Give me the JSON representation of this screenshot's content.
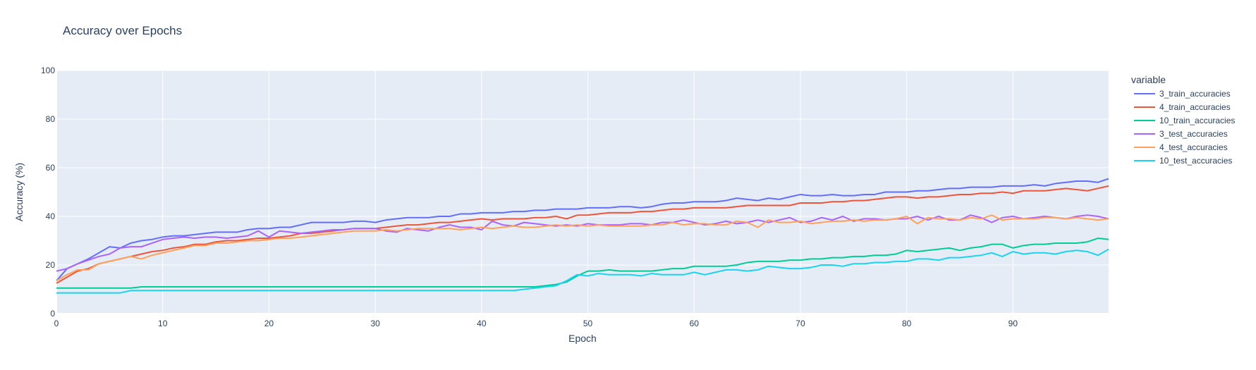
{
  "chart_data": {
    "type": "line",
    "title": "Accuracy over Epochs",
    "xlabel": "Epoch",
    "ylabel": "Accuracy (%)",
    "xlim": [
      0,
      99
    ],
    "ylim": [
      0,
      100
    ],
    "x_ticks": [
      0,
      10,
      20,
      30,
      40,
      50,
      60,
      70,
      80,
      90
    ],
    "y_ticks": [
      0,
      20,
      40,
      60,
      80,
      100
    ],
    "grid": true,
    "legend_title": "variable",
    "legend_position": "right",
    "x": [
      0,
      1,
      2,
      3,
      4,
      5,
      6,
      7,
      8,
      9,
      10,
      11,
      12,
      13,
      14,
      15,
      16,
      17,
      18,
      19,
      20,
      21,
      22,
      23,
      24,
      25,
      26,
      27,
      28,
      29,
      30,
      31,
      32,
      33,
      34,
      35,
      36,
      37,
      38,
      39,
      40,
      41,
      42,
      43,
      44,
      45,
      46,
      47,
      48,
      49,
      50,
      51,
      52,
      53,
      54,
      55,
      56,
      57,
      58,
      59,
      60,
      61,
      62,
      63,
      64,
      65,
      66,
      67,
      68,
      69,
      70,
      71,
      72,
      73,
      74,
      75,
      76,
      77,
      78,
      79,
      80,
      81,
      82,
      83,
      84,
      85,
      86,
      87,
      88,
      89,
      90,
      91,
      92,
      93,
      94,
      95,
      96,
      97,
      98,
      99
    ],
    "series": [
      {
        "name": "3_train_accuracies",
        "color": "#636efa",
        "values": [
          13.5,
          18.5,
          20.5,
          22.5,
          25.0,
          27.5,
          27.0,
          29.0,
          30.0,
          30.5,
          31.5,
          32.0,
          32.0,
          32.5,
          33.0,
          33.5,
          33.5,
          33.5,
          34.5,
          35.0,
          35.0,
          35.5,
          35.5,
          36.5,
          37.5,
          37.5,
          37.5,
          37.5,
          38.0,
          38.0,
          37.5,
          38.5,
          39.0,
          39.5,
          39.5,
          39.5,
          40.0,
          40.0,
          41.0,
          41.0,
          41.5,
          41.5,
          41.5,
          42.0,
          42.0,
          42.5,
          42.5,
          43.0,
          43.0,
          43.0,
          43.5,
          43.5,
          43.5,
          44.0,
          44.0,
          43.5,
          44.0,
          45.0,
          45.5,
          45.5,
          46.0,
          46.0,
          46.0,
          46.5,
          47.5,
          47.0,
          46.5,
          47.5,
          47.0,
          48.0,
          49.0,
          48.5,
          48.5,
          49.0,
          48.5,
          48.5,
          49.0,
          49.0,
          50.0,
          50.0,
          50.0,
          50.5,
          50.5,
          51.0,
          51.5,
          51.5,
          52.0,
          52.0,
          52.0,
          52.5,
          52.5,
          52.5,
          53.0,
          52.5,
          53.5,
          54.0,
          54.5,
          54.5,
          54.0,
          55.5
        ]
      },
      {
        "name": "4_train_accuracies",
        "color": "#ef553b",
        "values": [
          12.5,
          15.0,
          17.5,
          18.5,
          20.5,
          21.5,
          22.5,
          23.5,
          24.5,
          25.5,
          26.0,
          27.0,
          27.5,
          28.5,
          28.5,
          29.5,
          30.0,
          30.0,
          30.5,
          31.0,
          31.0,
          31.5,
          32.0,
          33.0,
          33.0,
          33.5,
          34.0,
          34.5,
          35.0,
          35.0,
          35.0,
          35.5,
          36.0,
          36.5,
          36.5,
          37.0,
          37.5,
          37.5,
          38.0,
          38.5,
          39.0,
          38.5,
          39.0,
          39.0,
          39.0,
          39.5,
          39.5,
          40.0,
          39.0,
          40.5,
          40.5,
          41.0,
          41.5,
          41.5,
          41.5,
          42.0,
          42.0,
          42.5,
          43.0,
          43.0,
          43.5,
          43.5,
          43.5,
          43.5,
          44.0,
          44.5,
          44.5,
          44.5,
          44.5,
          44.5,
          45.5,
          45.5,
          45.5,
          46.0,
          46.0,
          46.5,
          46.5,
          47.0,
          47.5,
          48.0,
          48.0,
          47.5,
          48.0,
          48.0,
          48.5,
          49.0,
          49.0,
          49.5,
          49.5,
          50.0,
          49.5,
          50.5,
          50.5,
          50.5,
          51.0,
          51.5,
          51.0,
          50.5,
          51.5,
          52.5
        ]
      },
      {
        "name": "10_train_accuracies",
        "color": "#00cc96",
        "values": [
          10.5,
          10.5,
          10.5,
          10.5,
          10.5,
          10.5,
          10.5,
          10.5,
          11.0,
          11.0,
          11.0,
          11.0,
          11.0,
          11.0,
          11.0,
          11.0,
          11.0,
          11.0,
          11.0,
          11.0,
          11.0,
          11.0,
          11.0,
          11.0,
          11.0,
          11.0,
          11.0,
          11.0,
          11.0,
          11.0,
          11.0,
          11.0,
          11.0,
          11.0,
          11.0,
          11.0,
          11.0,
          11.0,
          11.0,
          11.0,
          11.0,
          11.0,
          11.0,
          11.0,
          11.0,
          11.0,
          11.5,
          12.0,
          13.0,
          15.5,
          17.5,
          17.5,
          18.0,
          17.5,
          17.5,
          17.5,
          17.5,
          18.0,
          18.5,
          18.5,
          19.5,
          19.5,
          19.5,
          19.5,
          20.0,
          21.0,
          21.5,
          21.5,
          21.5,
          22.0,
          22.0,
          22.5,
          22.5,
          23.0,
          23.0,
          23.5,
          23.5,
          24.0,
          24.0,
          24.5,
          26.0,
          25.5,
          26.0,
          26.5,
          27.0,
          26.0,
          27.0,
          27.5,
          28.5,
          28.5,
          27.0,
          28.0,
          28.5,
          28.5,
          29.0,
          29.0,
          29.0,
          29.5,
          31.0,
          30.5
        ]
      },
      {
        "name": "3_test_accuracies",
        "color": "#ab63fa",
        "values": [
          17.5,
          18.5,
          20.5,
          22.0,
          23.5,
          24.5,
          27.0,
          27.5,
          27.5,
          29.0,
          30.5,
          31.0,
          31.5,
          31.0,
          31.5,
          31.5,
          31.0,
          31.5,
          32.0,
          34.0,
          31.5,
          34.0,
          33.5,
          33.0,
          33.5,
          34.0,
          34.5,
          34.5,
          35.0,
          35.0,
          35.0,
          34.0,
          33.5,
          35.0,
          34.5,
          34.0,
          35.5,
          36.5,
          35.5,
          35.5,
          34.5,
          38.0,
          36.5,
          36.0,
          37.5,
          37.0,
          36.5,
          36.0,
          36.5,
          36.0,
          37.0,
          36.5,
          36.5,
          36.5,
          37.0,
          37.0,
          36.5,
          37.5,
          37.5,
          38.5,
          37.5,
          36.5,
          37.0,
          38.0,
          37.0,
          37.5,
          38.5,
          37.5,
          38.5,
          39.5,
          37.5,
          38.0,
          39.5,
          38.5,
          40.0,
          38.0,
          39.0,
          39.0,
          38.5,
          39.0,
          39.0,
          40.0,
          38.5,
          40.0,
          38.5,
          38.5,
          40.5,
          39.5,
          37.5,
          39.5,
          40.0,
          39.0,
          39.5,
          40.0,
          39.5,
          39.0,
          40.0,
          40.5,
          40.0,
          39.0
        ]
      },
      {
        "name": "4_test_accuracies",
        "color": "#ffa15a",
        "values": [
          13.5,
          16.0,
          18.0,
          18.0,
          20.5,
          21.5,
          22.5,
          23.5,
          22.5,
          24.0,
          25.0,
          26.0,
          27.0,
          28.0,
          28.0,
          29.0,
          29.0,
          29.5,
          30.0,
          30.0,
          30.5,
          31.0,
          31.0,
          31.5,
          32.0,
          32.5,
          33.0,
          33.5,
          34.0,
          34.0,
          34.0,
          34.5,
          34.0,
          34.5,
          35.0,
          35.0,
          35.0,
          35.0,
          34.5,
          35.0,
          35.5,
          35.0,
          35.5,
          36.0,
          35.5,
          35.5,
          36.0,
          36.5,
          36.0,
          36.5,
          36.0,
          36.5,
          36.0,
          36.0,
          36.0,
          36.0,
          36.5,
          36.5,
          37.5,
          36.5,
          37.0,
          37.0,
          36.5,
          36.5,
          38.0,
          37.5,
          35.5,
          38.5,
          37.5,
          37.5,
          38.0,
          37.0,
          37.5,
          38.0,
          38.0,
          38.5,
          38.0,
          38.5,
          38.5,
          39.0,
          40.0,
          37.0,
          39.5,
          39.0,
          39.0,
          38.5,
          39.5,
          39.0,
          40.5,
          38.5,
          39.0,
          39.0,
          39.0,
          39.5,
          39.5,
          39.0,
          39.5,
          39.0,
          38.5,
          39.0
        ]
      },
      {
        "name": "10_test_accuracies",
        "color": "#19d3f3",
        "values": [
          8.5,
          8.5,
          8.5,
          8.5,
          8.5,
          8.5,
          8.5,
          9.5,
          9.5,
          9.5,
          9.5,
          9.5,
          9.5,
          9.5,
          9.5,
          9.5,
          9.5,
          9.5,
          9.5,
          9.5,
          9.5,
          9.5,
          9.5,
          9.5,
          9.5,
          9.5,
          9.5,
          9.5,
          9.5,
          9.5,
          9.5,
          9.5,
          9.5,
          9.5,
          9.5,
          9.5,
          9.5,
          9.5,
          9.5,
          9.5,
          9.5,
          9.5,
          9.5,
          9.5,
          10.0,
          10.5,
          11.0,
          11.5,
          13.5,
          16.0,
          15.5,
          16.5,
          16.0,
          16.0,
          16.0,
          15.5,
          16.5,
          16.0,
          16.0,
          16.0,
          17.0,
          16.0,
          17.0,
          18.0,
          18.0,
          17.5,
          18.0,
          19.5,
          19.0,
          18.5,
          18.5,
          19.0,
          20.0,
          20.0,
          19.5,
          20.5,
          20.5,
          21.0,
          21.0,
          21.5,
          21.5,
          22.5,
          22.5,
          22.0,
          23.0,
          23.0,
          23.5,
          24.0,
          25.0,
          23.5,
          25.5,
          24.5,
          25.0,
          25.0,
          24.5,
          25.5,
          26.0,
          25.5,
          24.0,
          26.5
        ]
      }
    ]
  }
}
